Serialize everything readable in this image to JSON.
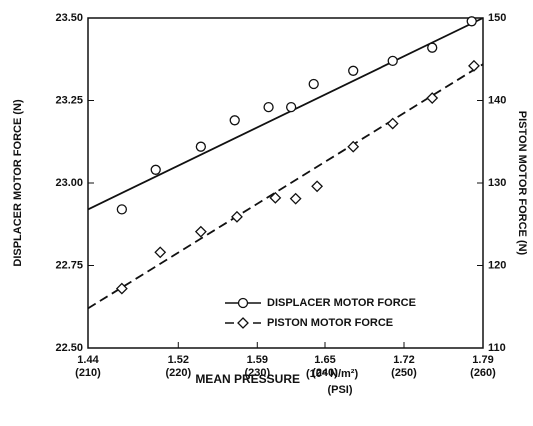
{
  "chart_data": {
    "type": "scatter",
    "xlabel": "MEAN PRESSURE",
    "xlabel_unit": "(10⁶ N/m²)",
    "xlabel_unit2": "(PSI)",
    "ylabel": "DISPLACER MOTOR FORCE (N)",
    "y2label": "PISTON MOTOR FORCE (N)",
    "xlim": [
      1.44,
      1.79
    ],
    "xticks": [
      1.44,
      1.52,
      1.59,
      1.65,
      1.72,
      1.79
    ],
    "xtick_sublabels": [
      "(210)",
      "(220)",
      "(230)",
      "(240)",
      "(250)",
      "(260)"
    ],
    "ylim": [
      22.5,
      23.5
    ],
    "yticks": [
      {
        "value": 22.5,
        "label": "22.50"
      },
      {
        "value": 22.75,
        "label": "22.75"
      },
      {
        "value": 23.0,
        "label": "23.00"
      },
      {
        "value": 23.25,
        "label": "23.25"
      },
      {
        "value": 23.5,
        "label": "23.50"
      }
    ],
    "y2lim": [
      110,
      150
    ],
    "y2ticks": [
      110,
      120,
      130,
      140,
      150
    ],
    "legend": "lower right",
    "series": [
      {
        "name": "DISPLACER MOTOR FORCE",
        "color": "#111111",
        "marker": "circle",
        "line_style": "solid",
        "x": [
          1.47,
          1.5,
          1.54,
          1.57,
          1.6,
          1.62,
          1.64,
          1.675,
          1.71,
          1.745,
          1.78
        ],
        "values": [
          22.92,
          23.04,
          23.11,
          23.19,
          23.23,
          23.23,
          23.3,
          23.34,
          23.37,
          23.41,
          23.49
        ],
        "fit_x": [
          1.44,
          1.79
        ],
        "fit_values": [
          22.92,
          23.5
        ]
      },
      {
        "name": "PISTON MOTOR FORCE",
        "color": "#111111",
        "marker": "diamond",
        "line_style": "dashed",
        "axis": "y2",
        "x": [
          1.47,
          1.504,
          1.54,
          1.572,
          1.606,
          1.624,
          1.643,
          1.675,
          1.71,
          1.745,
          1.782
        ],
        "values": [
          117.2,
          121.6,
          124.1,
          125.9,
          128.2,
          128.1,
          129.6,
          134.4,
          137.2,
          140.3,
          144.2
        ],
        "fit_x": [
          1.44,
          1.79
        ],
        "fit_values": [
          114.8,
          144.4
        ]
      }
    ]
  }
}
